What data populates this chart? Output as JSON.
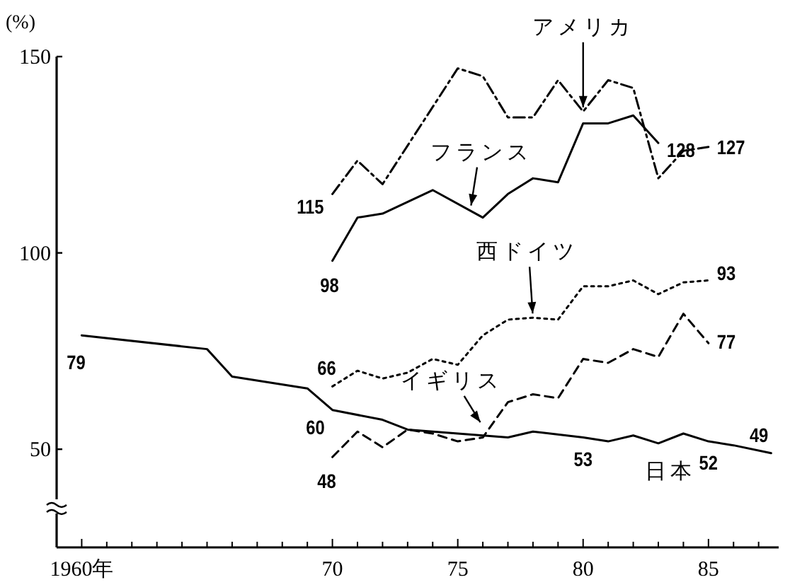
{
  "chart_data": {
    "type": "line",
    "ylabel": "(%)",
    "xlim": [
      1959,
      1987.8
    ],
    "ylim": [
      25,
      150
    ],
    "yticks": [
      50,
      100,
      150
    ],
    "xticks": [
      {
        "value": 1960,
        "label": "1960年"
      },
      {
        "value": 1961,
        "label": null
      },
      {
        "value": 1962,
        "label": null
      },
      {
        "value": 1963,
        "label": null
      },
      {
        "value": 1964,
        "label": null
      },
      {
        "value": 1965,
        "label": null
      },
      {
        "value": 1966,
        "label": null
      },
      {
        "value": 1967,
        "label": null
      },
      {
        "value": 1968,
        "label": null
      },
      {
        "value": 1969,
        "label": null
      },
      {
        "value": 1970,
        "label": "70"
      },
      {
        "value": 1971,
        "label": null
      },
      {
        "value": 1972,
        "label": null
      },
      {
        "value": 1973,
        "label": null
      },
      {
        "value": 1974,
        "label": null
      },
      {
        "value": 1975,
        "label": "75"
      },
      {
        "value": 1976,
        "label": null
      },
      {
        "value": 1977,
        "label": null
      },
      {
        "value": 1978,
        "label": null
      },
      {
        "value": 1979,
        "label": null
      },
      {
        "value": 1980,
        "label": "80"
      },
      {
        "value": 1981,
        "label": null
      },
      {
        "value": 1982,
        "label": null
      },
      {
        "value": 1983,
        "label": null
      },
      {
        "value": 1984,
        "label": null
      },
      {
        "value": 1985,
        "label": "85"
      },
      {
        "value": 1986,
        "label": null
      },
      {
        "value": 1987,
        "label": null
      }
    ],
    "grid": false,
    "series": [
      {
        "color": "#000000",
        "line_style": "dashdot",
        "x": [
          1970,
          1971,
          1972,
          1975,
          1976,
          1977,
          1978,
          1979,
          1980,
          1981,
          1982,
          1983,
          1984,
          1985
        ],
        "values": [
          115,
          123.5,
          117.5,
          147,
          145,
          134.5,
          134.5,
          144,
          136,
          144,
          142,
          119,
          126,
          127
        ],
        "value_labels": [
          "115",
          null,
          null,
          null,
          null,
          null,
          null,
          null,
          null,
          null,
          null,
          null,
          null,
          "127"
        ]
      },
      {
        "color": "#000000",
        "line_style": "solid",
        "x": [
          1970,
          1971,
          1972,
          1974,
          1976,
          1977,
          1978,
          1979,
          1980,
          1981,
          1982,
          1983
        ],
        "values": [
          98,
          109,
          110,
          116,
          109,
          115,
          119,
          118,
          133,
          133,
          135,
          128
        ],
        "value_labels": [
          "98",
          null,
          null,
          null,
          null,
          null,
          null,
          null,
          null,
          null,
          null,
          "128"
        ]
      },
      {
        "color": "#000000",
        "line_style": "dotted",
        "x": [
          1970,
          1971,
          1972,
          1973,
          1974,
          1975,
          1976,
          1977,
          1978,
          1979,
          1980,
          1981,
          1982,
          1983,
          1984,
          1985
        ],
        "values": [
          66,
          70,
          68,
          69.5,
          73,
          71.5,
          79,
          83,
          83.5,
          83,
          91.5,
          91.5,
          93,
          89.5,
          92.5,
          93
        ],
        "value_labels": [
          "66",
          null,
          null,
          null,
          null,
          null,
          null,
          null,
          null,
          null,
          null,
          null,
          null,
          null,
          null,
          "93"
        ]
      },
      {
        "color": "#000000",
        "line_style": "dashed",
        "x": [
          1970,
          1971,
          1972,
          1973,
          1974,
          1975,
          1976,
          1977,
          1978,
          1979,
          1980,
          1981,
          1982,
          1983,
          1984,
          1985
        ],
        "values": [
          48,
          54.5,
          50.5,
          55,
          54,
          52,
          53,
          62,
          64,
          63,
          73,
          72,
          75.5,
          73.5,
          84.5,
          77
        ],
        "value_labels": [
          "48",
          null,
          null,
          null,
          null,
          null,
          null,
          null,
          null,
          null,
          null,
          null,
          null,
          null,
          null,
          "77"
        ]
      },
      {
        "color": "#000000",
        "line_style": "solid",
        "x": [
          1960,
          1965,
          1966,
          1969,
          1970,
          1972,
          1973,
          1975,
          1976,
          1977,
          1978,
          1980,
          1981,
          1982,
          1983,
          1984,
          1985,
          1986,
          1987.5
        ],
        "values": [
          79,
          75.5,
          68.5,
          65.5,
          60,
          57.5,
          55,
          54,
          53.5,
          53,
          54.5,
          53,
          52,
          53.5,
          51.5,
          54,
          52,
          51,
          49
        ],
        "value_labels": [
          "79",
          null,
          null,
          null,
          "60",
          null,
          null,
          null,
          null,
          null,
          null,
          "53",
          null,
          null,
          null,
          null,
          "52",
          null,
          "49"
        ]
      }
    ],
    "annotations": [
      {
        "text": "アメリカ",
        "x": 1980,
        "y": 136
      },
      {
        "text": "フランス",
        "x": 1975.5,
        "y": 111
      },
      {
        "text": "西ドイツ",
        "x": 1978,
        "y": 83.5
      },
      {
        "text": "イギリス",
        "x": 1976,
        "y": 56
      },
      {
        "text": "日本",
        "x": 1982,
        "y": 53.5
      }
    ]
  }
}
